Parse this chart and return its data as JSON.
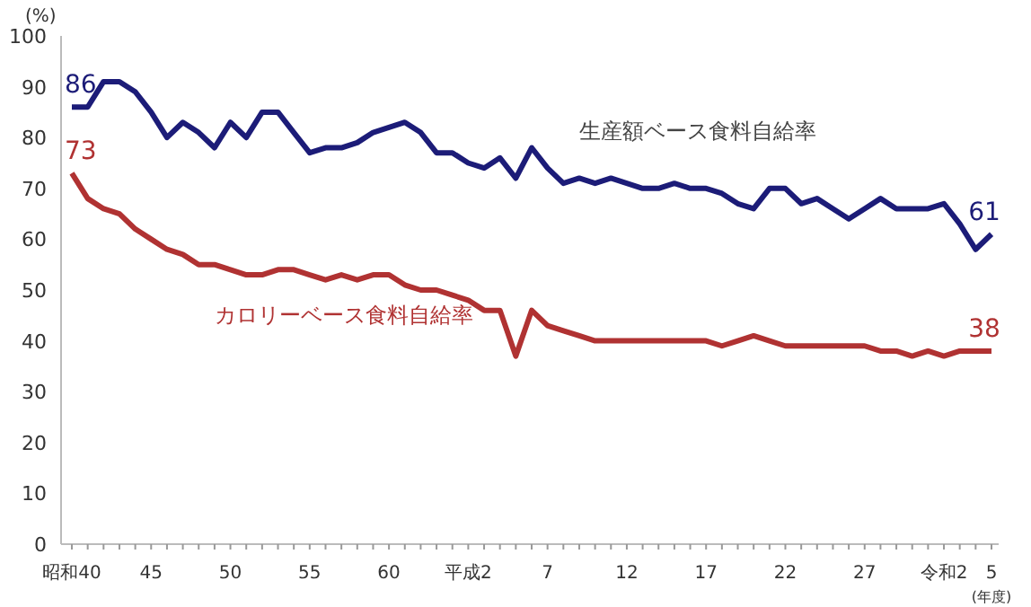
{
  "chart_data": {
    "type": "line",
    "ylabel": "(%)",
    "xlabel": "(年度)",
    "categories": [
      "昭和40",
      null,
      null,
      null,
      null,
      "45",
      null,
      null,
      null,
      null,
      "50",
      null,
      null,
      null,
      null,
      "55",
      null,
      null,
      null,
      null,
      "60",
      null,
      null,
      null,
      null,
      "平成2",
      null,
      null,
      null,
      null,
      "7",
      null,
      null,
      null,
      null,
      "12",
      null,
      null,
      null,
      null,
      "17",
      null,
      null,
      null,
      null,
      "22",
      null,
      null,
      null,
      null,
      "27",
      null,
      null,
      null,
      null,
      "令和2",
      null,
      null,
      "5"
    ],
    "ylim": [
      0,
      100
    ],
    "yticks": [
      0,
      10,
      20,
      30,
      40,
      50,
      60,
      70,
      80,
      90,
      100
    ],
    "grid": false,
    "legend": false,
    "marker": "none",
    "line_style": "solid",
    "series": [
      {
        "name": "生産額ベース食料自給率",
        "color": "#1c1c78",
        "values": [
          86,
          86,
          91,
          91,
          89,
          85,
          80,
          83,
          81,
          78,
          83,
          80,
          85,
          85,
          81,
          77,
          78,
          78,
          79,
          81,
          82,
          83,
          81,
          77,
          77,
          75,
          74,
          76,
          72,
          78,
          74,
          71,
          72,
          71,
          72,
          71,
          70,
          70,
          71,
          70,
          70,
          69,
          67,
          66,
          70,
          70,
          67,
          68,
          66,
          64,
          66,
          68,
          66,
          66,
          66,
          67,
          63,
          58,
          61
        ],
        "value_labels": [
          "86",
          null,
          null,
          null,
          null,
          null,
          null,
          null,
          null,
          null,
          null,
          null,
          null,
          null,
          null,
          null,
          null,
          null,
          null,
          null,
          null,
          null,
          null,
          null,
          null,
          null,
          null,
          null,
          null,
          null,
          null,
          null,
          null,
          null,
          null,
          null,
          null,
          null,
          null,
          null,
          null,
          null,
          null,
          null,
          null,
          null,
          null,
          null,
          null,
          null,
          null,
          null,
          null,
          null,
          null,
          null,
          null,
          null,
          "61"
        ]
      },
      {
        "name": "カロリーベース食料自給率",
        "color": "#b03232",
        "values": [
          73,
          68,
          66,
          65,
          62,
          60,
          58,
          57,
          55,
          55,
          54,
          53,
          53,
          54,
          54,
          53,
          52,
          53,
          52,
          53,
          53,
          51,
          50,
          50,
          49,
          48,
          46,
          46,
          37,
          46,
          43,
          42,
          41,
          40,
          40,
          40,
          40,
          40,
          40,
          40,
          40,
          39,
          40,
          41,
          40,
          39,
          39,
          39,
          39,
          39,
          39,
          38,
          38,
          37,
          38,
          37,
          38,
          38,
          38
        ],
        "value_labels": [
          "73",
          null,
          null,
          null,
          null,
          null,
          null,
          null,
          null,
          null,
          null,
          null,
          null,
          null,
          null,
          null,
          null,
          null,
          null,
          null,
          null,
          null,
          null,
          null,
          null,
          null,
          null,
          null,
          null,
          null,
          null,
          null,
          null,
          null,
          null,
          null,
          null,
          null,
          null,
          null,
          null,
          null,
          null,
          null,
          null,
          null,
          null,
          null,
          null,
          null,
          null,
          null,
          null,
          null,
          null,
          null,
          null,
          null,
          "38"
        ]
      }
    ]
  }
}
